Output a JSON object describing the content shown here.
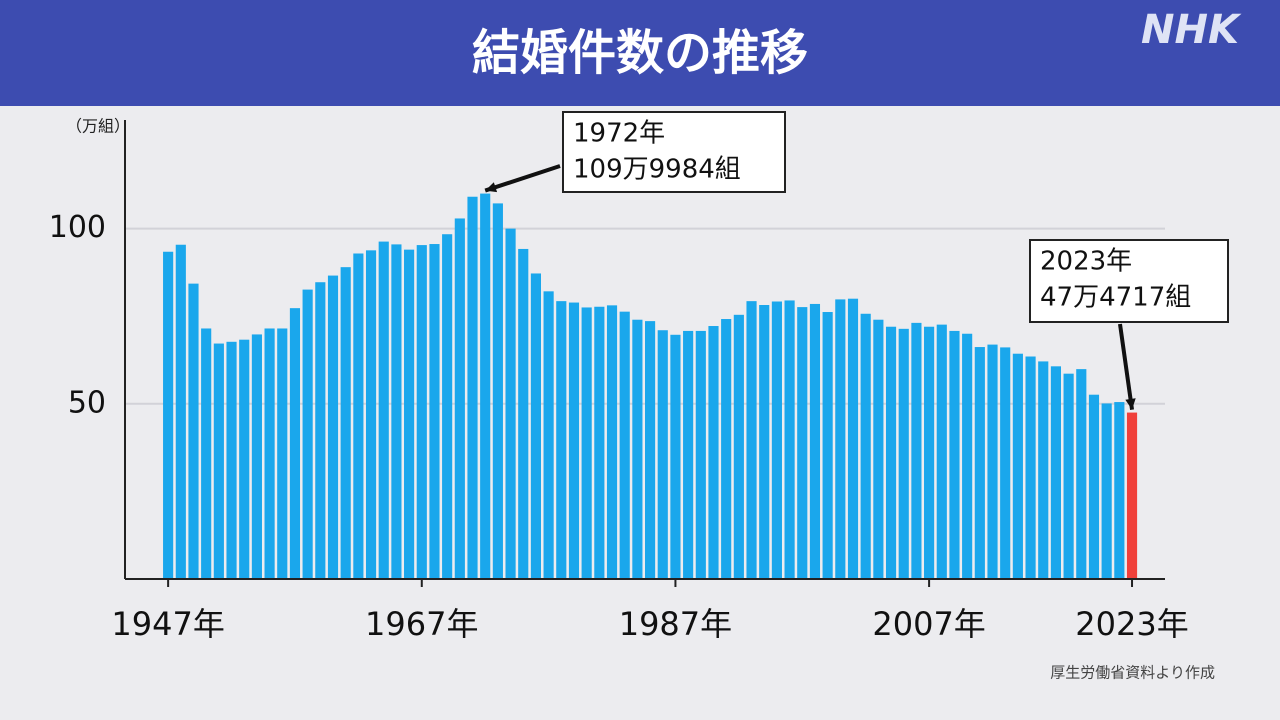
{
  "header": {
    "title": "結婚件数の推移",
    "logo": "NHK"
  },
  "chart_data": {
    "type": "bar",
    "y_axis_label": "（万組）",
    "x": [
      1947,
      1948,
      1949,
      1950,
      1951,
      1952,
      1953,
      1954,
      1955,
      1956,
      1957,
      1958,
      1959,
      1960,
      1961,
      1962,
      1963,
      1964,
      1965,
      1966,
      1967,
      1968,
      1969,
      1970,
      1971,
      1972,
      1973,
      1974,
      1975,
      1976,
      1977,
      1978,
      1979,
      1980,
      1981,
      1982,
      1983,
      1984,
      1985,
      1986,
      1987,
      1988,
      1989,
      1990,
      1991,
      1992,
      1993,
      1994,
      1995,
      1996,
      1997,
      1998,
      1999,
      2000,
      2001,
      2002,
      2003,
      2004,
      2005,
      2006,
      2007,
      2008,
      2009,
      2010,
      2011,
      2012,
      2013,
      2014,
      2015,
      2016,
      2017,
      2018,
      2019,
      2020,
      2021,
      2022,
      2023
    ],
    "values": [
      93.4,
      95.4,
      84.3,
      71.5,
      67.2,
      67.7,
      68.3,
      69.8,
      71.5,
      71.5,
      77.3,
      82.6,
      84.7,
      86.6,
      89.0,
      92.9,
      93.8,
      96.3,
      95.5,
      94.0,
      95.3,
      95.6,
      98.4,
      102.9,
      109.1,
      110.0,
      107.2,
      100.0,
      94.2,
      87.2,
      82.1,
      79.3,
      78.9,
      77.5,
      77.7,
      78.1,
      76.3,
      74.0,
      73.6,
      71.0,
      69.7,
      70.8,
      70.8,
      72.2,
      74.2,
      75.4,
      79.3,
      78.2,
      79.2,
      79.5,
      77.6,
      78.5,
      76.2,
      79.8,
      80.0,
      75.7,
      74.0,
      72.0,
      71.4,
      73.1,
      72.0,
      72.6,
      70.8,
      70.0,
      66.2,
      66.9,
      66.1,
      64.3,
      63.5,
      62.1,
      60.7,
      58.6,
      59.9,
      52.6,
      50.1,
      50.5,
      47.5
    ],
    "color": "#1aa7ec",
    "highlight_x": 2023,
    "highlight_color": "#f0403a",
    "xlim": [
      1943.6,
      2025.6
    ],
    "xticks": [
      {
        "value": 1947,
        "label": "1947年"
      },
      {
        "value": 1967,
        "label": "1967年"
      },
      {
        "value": 1987,
        "label": "1987年"
      },
      {
        "value": 2007,
        "label": "2007年"
      },
      {
        "value": 2023,
        "label": "2023年"
      }
    ],
    "ylim": [
      0,
      131
    ],
    "yticks": [
      50,
      100
    ],
    "grid": true,
    "annotations": [
      {
        "lines": [
          "1972年",
          "109万9984組"
        ],
        "x": 1972,
        "y": 109.9984
      },
      {
        "lines": [
          "2023年",
          "47万4717組"
        ],
        "x": 2023,
        "y": 47.4717
      }
    ],
    "source": "厚生労働省資料より作成"
  }
}
